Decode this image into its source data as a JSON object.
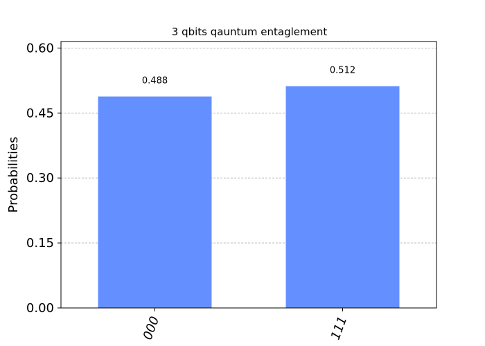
{
  "chart_data": {
    "type": "bar",
    "title": "3 qbits qauntum entaglement",
    "xlabel": "",
    "ylabel": "Probabilities",
    "categories": [
      "000",
      "111"
    ],
    "values": [
      0.488,
      0.512
    ],
    "data_labels": [
      "0.488",
      "0.512"
    ],
    "ylim": [
      0,
      0.615
    ],
    "yticks": [
      0.0,
      0.15,
      0.3,
      0.45,
      0.6
    ],
    "ytick_labels": [
      "0.00",
      "0.15",
      "0.30",
      "0.45",
      "0.60"
    ],
    "grid": "y-dashed",
    "bar_color": "#648fff",
    "grid_color": "#b0b0b0"
  }
}
